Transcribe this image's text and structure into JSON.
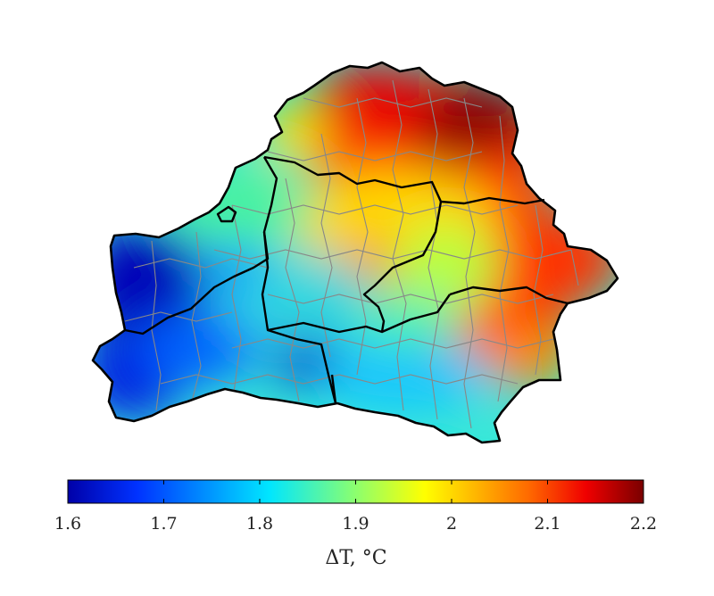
{
  "map": {
    "region": "Belarus",
    "variable_label": "ΔT, °C",
    "palette": "jet",
    "colorbar": {
      "min": 1.6,
      "max": 2.2,
      "ticks": [
        "1.6",
        "1.7",
        "1.8",
        "1.9",
        "2",
        "2.1",
        "2.2"
      ],
      "orientation": "horizontal",
      "placement": "bottom"
    },
    "hotspots": [
      {
        "area": "north-east",
        "value": 2.2
      },
      {
        "area": "north",
        "value": 2.12
      },
      {
        "area": "east",
        "value": 2.1
      },
      {
        "area": "south-east",
        "value": 2.08
      },
      {
        "area": "center",
        "value": 1.97
      },
      {
        "area": "center-west",
        "value": 1.82
      },
      {
        "area": "south",
        "value": 1.78
      },
      {
        "area": "west",
        "value": 1.62
      },
      {
        "area": "south-west",
        "value": 1.63
      }
    ]
  }
}
